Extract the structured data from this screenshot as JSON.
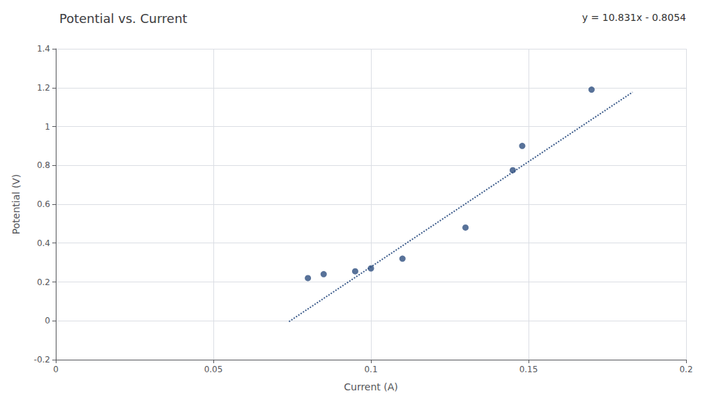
{
  "chart_data": {
    "type": "scatter",
    "title": "Potential vs. Current",
    "xlabel": "Current (A)",
    "ylabel": "Potential (V)",
    "annotation": "y = 10.831x - 0.8054",
    "series": [
      {
        "type": "scatter",
        "color": "#2E4F80",
        "marker": "circle",
        "x": [
          0.08,
          0.085,
          0.095,
          0.1,
          0.11,
          0.13,
          0.145,
          0.148,
          0.17
        ],
        "values": [
          0.22,
          0.24,
          0.255,
          0.27,
          0.32,
          0.48,
          0.775,
          0.9,
          1.19
        ]
      },
      {
        "type": "line",
        "color": "#3A5A8A",
        "line_style": "dotted",
        "x": [
          0.074,
          0.183
        ],
        "values": [
          -0.003906,
          1.176673
        ]
      }
    ],
    "xlim": [
      0,
      0.2
    ],
    "xticks": [
      0,
      0.05,
      0.1,
      0.15,
      0.2
    ],
    "ylim": [
      -0.2,
      1.4
    ],
    "yticks": [
      -0.2,
      0,
      0.2,
      0.4,
      0.6,
      0.8,
      1,
      1.2,
      1.4
    ],
    "grid": true
  }
}
